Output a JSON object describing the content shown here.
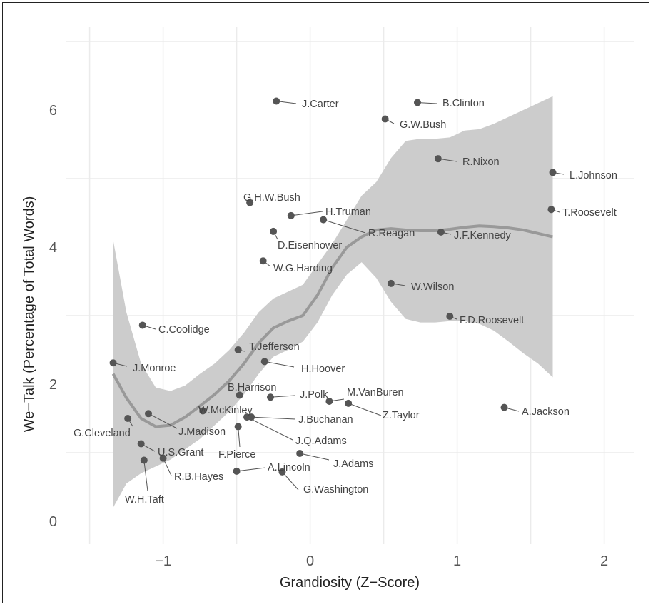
{
  "chart_data": {
    "type": "scatter",
    "xlabel": "Grandiosity (Z−Score)",
    "ylabel": "We−Talk (Percentage of Total Words)",
    "xlim": [
      -1.5,
      2.2
    ],
    "ylim": [
      -0.2,
      7.0
    ],
    "x_ticks": [
      "−1",
      "0",
      "1",
      "2"
    ],
    "y_ticks": [
      "0",
      "2",
      "4",
      "6"
    ],
    "grid": true,
    "colors": {
      "point": "#555555",
      "band": "#cccccc",
      "smooth": "#999999",
      "grid": "#ebebeb"
    },
    "points": [
      {
        "name": "J.Carter",
        "x": -0.23,
        "y": 6.13
      },
      {
        "name": "B.Clinton",
        "x": 0.73,
        "y": 6.11
      },
      {
        "name": "G.W.Bush",
        "x": 0.51,
        "y": 5.87
      },
      {
        "name": "R.Nixon",
        "x": 0.87,
        "y": 5.29
      },
      {
        "name": "L.Johnson",
        "x": 1.65,
        "y": 5.09
      },
      {
        "name": "T.Roosevelt",
        "x": 1.64,
        "y": 4.55
      },
      {
        "name": "G.H.W.Bush",
        "x": -0.41,
        "y": 4.65
      },
      {
        "name": "H.Truman",
        "x": -0.13,
        "y": 4.46
      },
      {
        "name": "R.Reagan",
        "x": 0.09,
        "y": 4.4
      },
      {
        "name": "J.F.Kennedy",
        "x": 0.89,
        "y": 4.22
      },
      {
        "name": "D.Eisenhower",
        "x": -0.25,
        "y": 4.23
      },
      {
        "name": "W.G.Harding",
        "x": -0.32,
        "y": 3.8
      },
      {
        "name": "W.Wilson",
        "x": 0.55,
        "y": 3.47
      },
      {
        "name": "F.D.Roosevelt",
        "x": 0.95,
        "y": 2.99
      },
      {
        "name": "C.Coolidge",
        "x": -1.14,
        "y": 2.86
      },
      {
        "name": "T.Jefferson",
        "x": -0.49,
        "y": 2.5
      },
      {
        "name": "J.Monroe",
        "x": -1.34,
        "y": 2.31
      },
      {
        "name": "H.Hoover",
        "x": -0.31,
        "y": 2.33
      },
      {
        "name": "B.Harrison",
        "x": -0.48,
        "y": 1.84
      },
      {
        "name": "J.Polk",
        "x": -0.27,
        "y": 1.81
      },
      {
        "name": "M.VanBuren",
        "x": 0.13,
        "y": 1.75
      },
      {
        "name": "Z.Taylor",
        "x": 0.26,
        "y": 1.72
      },
      {
        "name": "A.Jackson",
        "x": 1.32,
        "y": 1.66
      },
      {
        "name": "W.McKinley",
        "x": -0.73,
        "y": 1.61
      },
      {
        "name": "G.Cleveland",
        "x": -1.24,
        "y": 1.5
      },
      {
        "name": "J.Madison",
        "x": -1.1,
        "y": 1.57
      },
      {
        "name": "J.Buchanan",
        "x": -0.4,
        "y": 1.52
      },
      {
        "name": "J.Q.Adams",
        "x": -0.43,
        "y": 1.52
      },
      {
        "name": "F.Pierce",
        "x": -0.49,
        "y": 1.38
      },
      {
        "name": "U.S.Grant",
        "x": -1.15,
        "y": 1.13
      },
      {
        "name": "J.Adams",
        "x": -0.07,
        "y": 0.99
      },
      {
        "name": "R.B.Hayes",
        "x": -1.0,
        "y": 0.92
      },
      {
        "name": "W.H.Taft",
        "x": -1.13,
        "y": 0.89
      },
      {
        "name": "A.Lincoln",
        "x": -0.5,
        "y": 0.73
      },
      {
        "name": "G.Washington",
        "x": -0.19,
        "y": 0.72
      }
    ],
    "smooth": {
      "x": [
        -1.34,
        -1.25,
        -1.15,
        -1.05,
        -0.95,
        -0.85,
        -0.75,
        -0.65,
        -0.55,
        -0.45,
        -0.35,
        -0.25,
        -0.15,
        -0.05,
        0.05,
        0.15,
        0.25,
        0.35,
        0.45,
        0.55,
        0.65,
        0.75,
        0.85,
        0.95,
        1.05,
        1.15,
        1.25,
        1.35,
        1.45,
        1.55,
        1.65
      ],
      "y": [
        2.15,
        1.8,
        1.5,
        1.38,
        1.4,
        1.52,
        1.68,
        1.85,
        2.05,
        2.3,
        2.6,
        2.82,
        2.92,
        3.0,
        3.3,
        3.7,
        4.0,
        4.15,
        4.25,
        4.27,
        4.25,
        4.24,
        4.24,
        4.26,
        4.29,
        4.31,
        4.3,
        4.28,
        4.25,
        4.2,
        4.15
      ],
      "lo": [
        0.2,
        0.55,
        0.7,
        0.8,
        0.9,
        1.05,
        1.2,
        1.4,
        1.6,
        1.85,
        2.15,
        2.4,
        2.5,
        2.62,
        2.9,
        3.3,
        3.6,
        3.78,
        3.55,
        3.2,
        2.95,
        2.9,
        2.9,
        2.92,
        2.92,
        2.88,
        2.78,
        2.62,
        2.45,
        2.3,
        2.1
      ],
      "hi": [
        4.1,
        3.05,
        2.3,
        1.95,
        1.9,
        1.98,
        2.15,
        2.3,
        2.5,
        2.75,
        3.05,
        3.25,
        3.35,
        3.45,
        3.75,
        4.05,
        4.4,
        4.75,
        4.95,
        5.3,
        5.55,
        5.58,
        5.58,
        5.6,
        5.7,
        5.72,
        5.8,
        5.9,
        6.0,
        6.1,
        6.2
      ]
    }
  }
}
